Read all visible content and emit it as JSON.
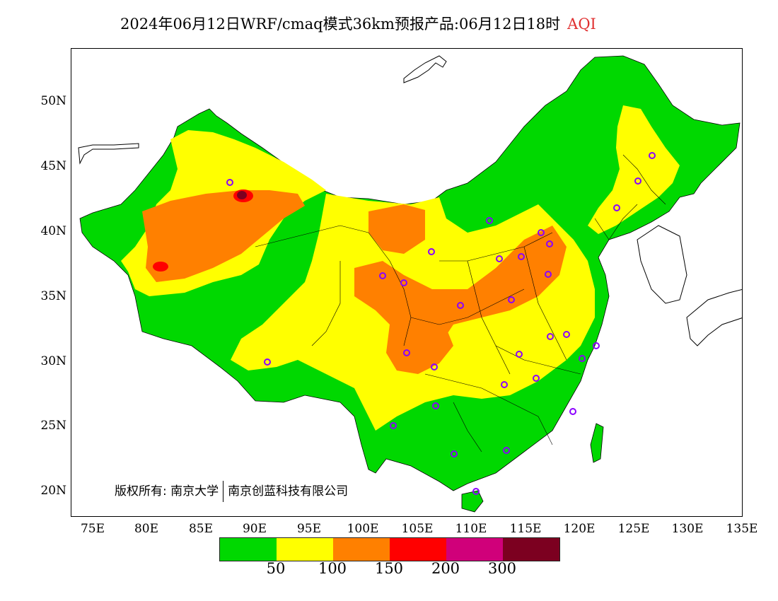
{
  "title": {
    "main": "2024年06月12日WRF/cmaq模式36km预报产品:06月12日18时",
    "variable": "AQI"
  },
  "axes": {
    "lat_ticks": [
      "50N",
      "45N",
      "40N",
      "35N",
      "30N",
      "25N",
      "20N"
    ],
    "lon_ticks": [
      "75E",
      "80E",
      "85E",
      "90E",
      "95E",
      "100E",
      "105E",
      "110E",
      "115E",
      "120E",
      "125E",
      "130E",
      "135E"
    ]
  },
  "copyright": {
    "prefix": "版权所有:",
    "org1": "南京大学",
    "org2": "南京创蓝科技有限公司"
  },
  "legend": {
    "labels": [
      "50",
      "100",
      "150",
      "200",
      "300"
    ],
    "colors": [
      "#00d800",
      "#ffff00",
      "#ff8000",
      "#ff0000",
      "#d0007a",
      "#7c0020"
    ]
  },
  "map_colors": {
    "good": "#00d800",
    "moderate": "#ffff00",
    "usg": "#ff8000",
    "unhealthy": "#ff0000",
    "very_unhealthy": "#d0007a",
    "hazardous": "#7c0020",
    "station": "#8b00ff",
    "boundary": "#000000"
  }
}
